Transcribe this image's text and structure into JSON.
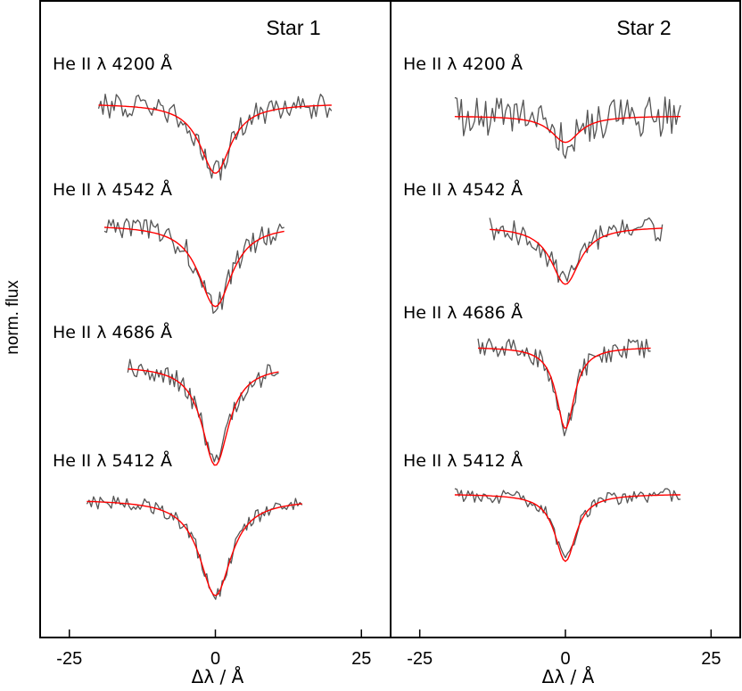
{
  "chart_data": [
    {
      "type": "line",
      "title": "Star 1",
      "xlabel": "Δλ / Å",
      "ylabel": "norm. flux",
      "xlim": [
        -30,
        30
      ],
      "xticks": [
        -25,
        0,
        25
      ],
      "xtick_labels": [
        "-25",
        "0",
        "25"
      ],
      "grid": false,
      "series": [
        {
          "name": "He II λ 4200 Å",
          "x_range": [
            -20,
            20
          ],
          "depth": 0.58,
          "sigma": 3.2,
          "obs_color": "#555555",
          "fit_color": "#ff0000"
        },
        {
          "name": "He II λ 4542 Å",
          "x_range": [
            -19,
            12
          ],
          "depth": 0.68,
          "sigma": 3.5,
          "obs_color": "#555555",
          "fit_color": "#ff0000"
        },
        {
          "name": "He II λ 4686 Å",
          "x_range": [
            -15,
            11
          ],
          "depth": 0.83,
          "sigma": 2.8,
          "obs_color": "#555555",
          "fit_color": "#ff0000"
        },
        {
          "name": "He II λ 5412 Å",
          "x_range": [
            -22,
            15
          ],
          "depth": 0.8,
          "sigma": 3.3,
          "obs_color": "#555555",
          "fit_color": "#ff0000"
        }
      ]
    },
    {
      "type": "line",
      "title": "Star 2",
      "xlabel": "Δλ / Å",
      "ylabel": "norm. flux",
      "xlim": [
        -30,
        30
      ],
      "xticks": [
        -25,
        0,
        25
      ],
      "xtick_labels": [
        "-25",
        "0",
        "25"
      ],
      "grid": false,
      "series": [
        {
          "name": "He II λ 4200 Å",
          "x_range": [
            -19,
            20
          ],
          "depth": 0.22,
          "sigma": 3.0,
          "obs_color": "#555555",
          "fit_color": "#ff0000"
        },
        {
          "name": "He II λ 4542 Å",
          "x_range": [
            -13,
            17
          ],
          "depth": 0.48,
          "sigma": 3.0,
          "obs_color": "#555555",
          "fit_color": "#ff0000"
        },
        {
          "name": "He II λ 4686 Å",
          "x_range": [
            -15,
            15
          ],
          "depth": 0.68,
          "sigma": 1.9,
          "obs_color": "#555555",
          "fit_color": "#ff0000"
        },
        {
          "name": "He II λ 5412 Å",
          "x_range": [
            -19,
            20
          ],
          "depth": 0.56,
          "sigma": 2.2,
          "obs_color": "#555555",
          "fit_color": "#ff0000"
        }
      ]
    }
  ]
}
